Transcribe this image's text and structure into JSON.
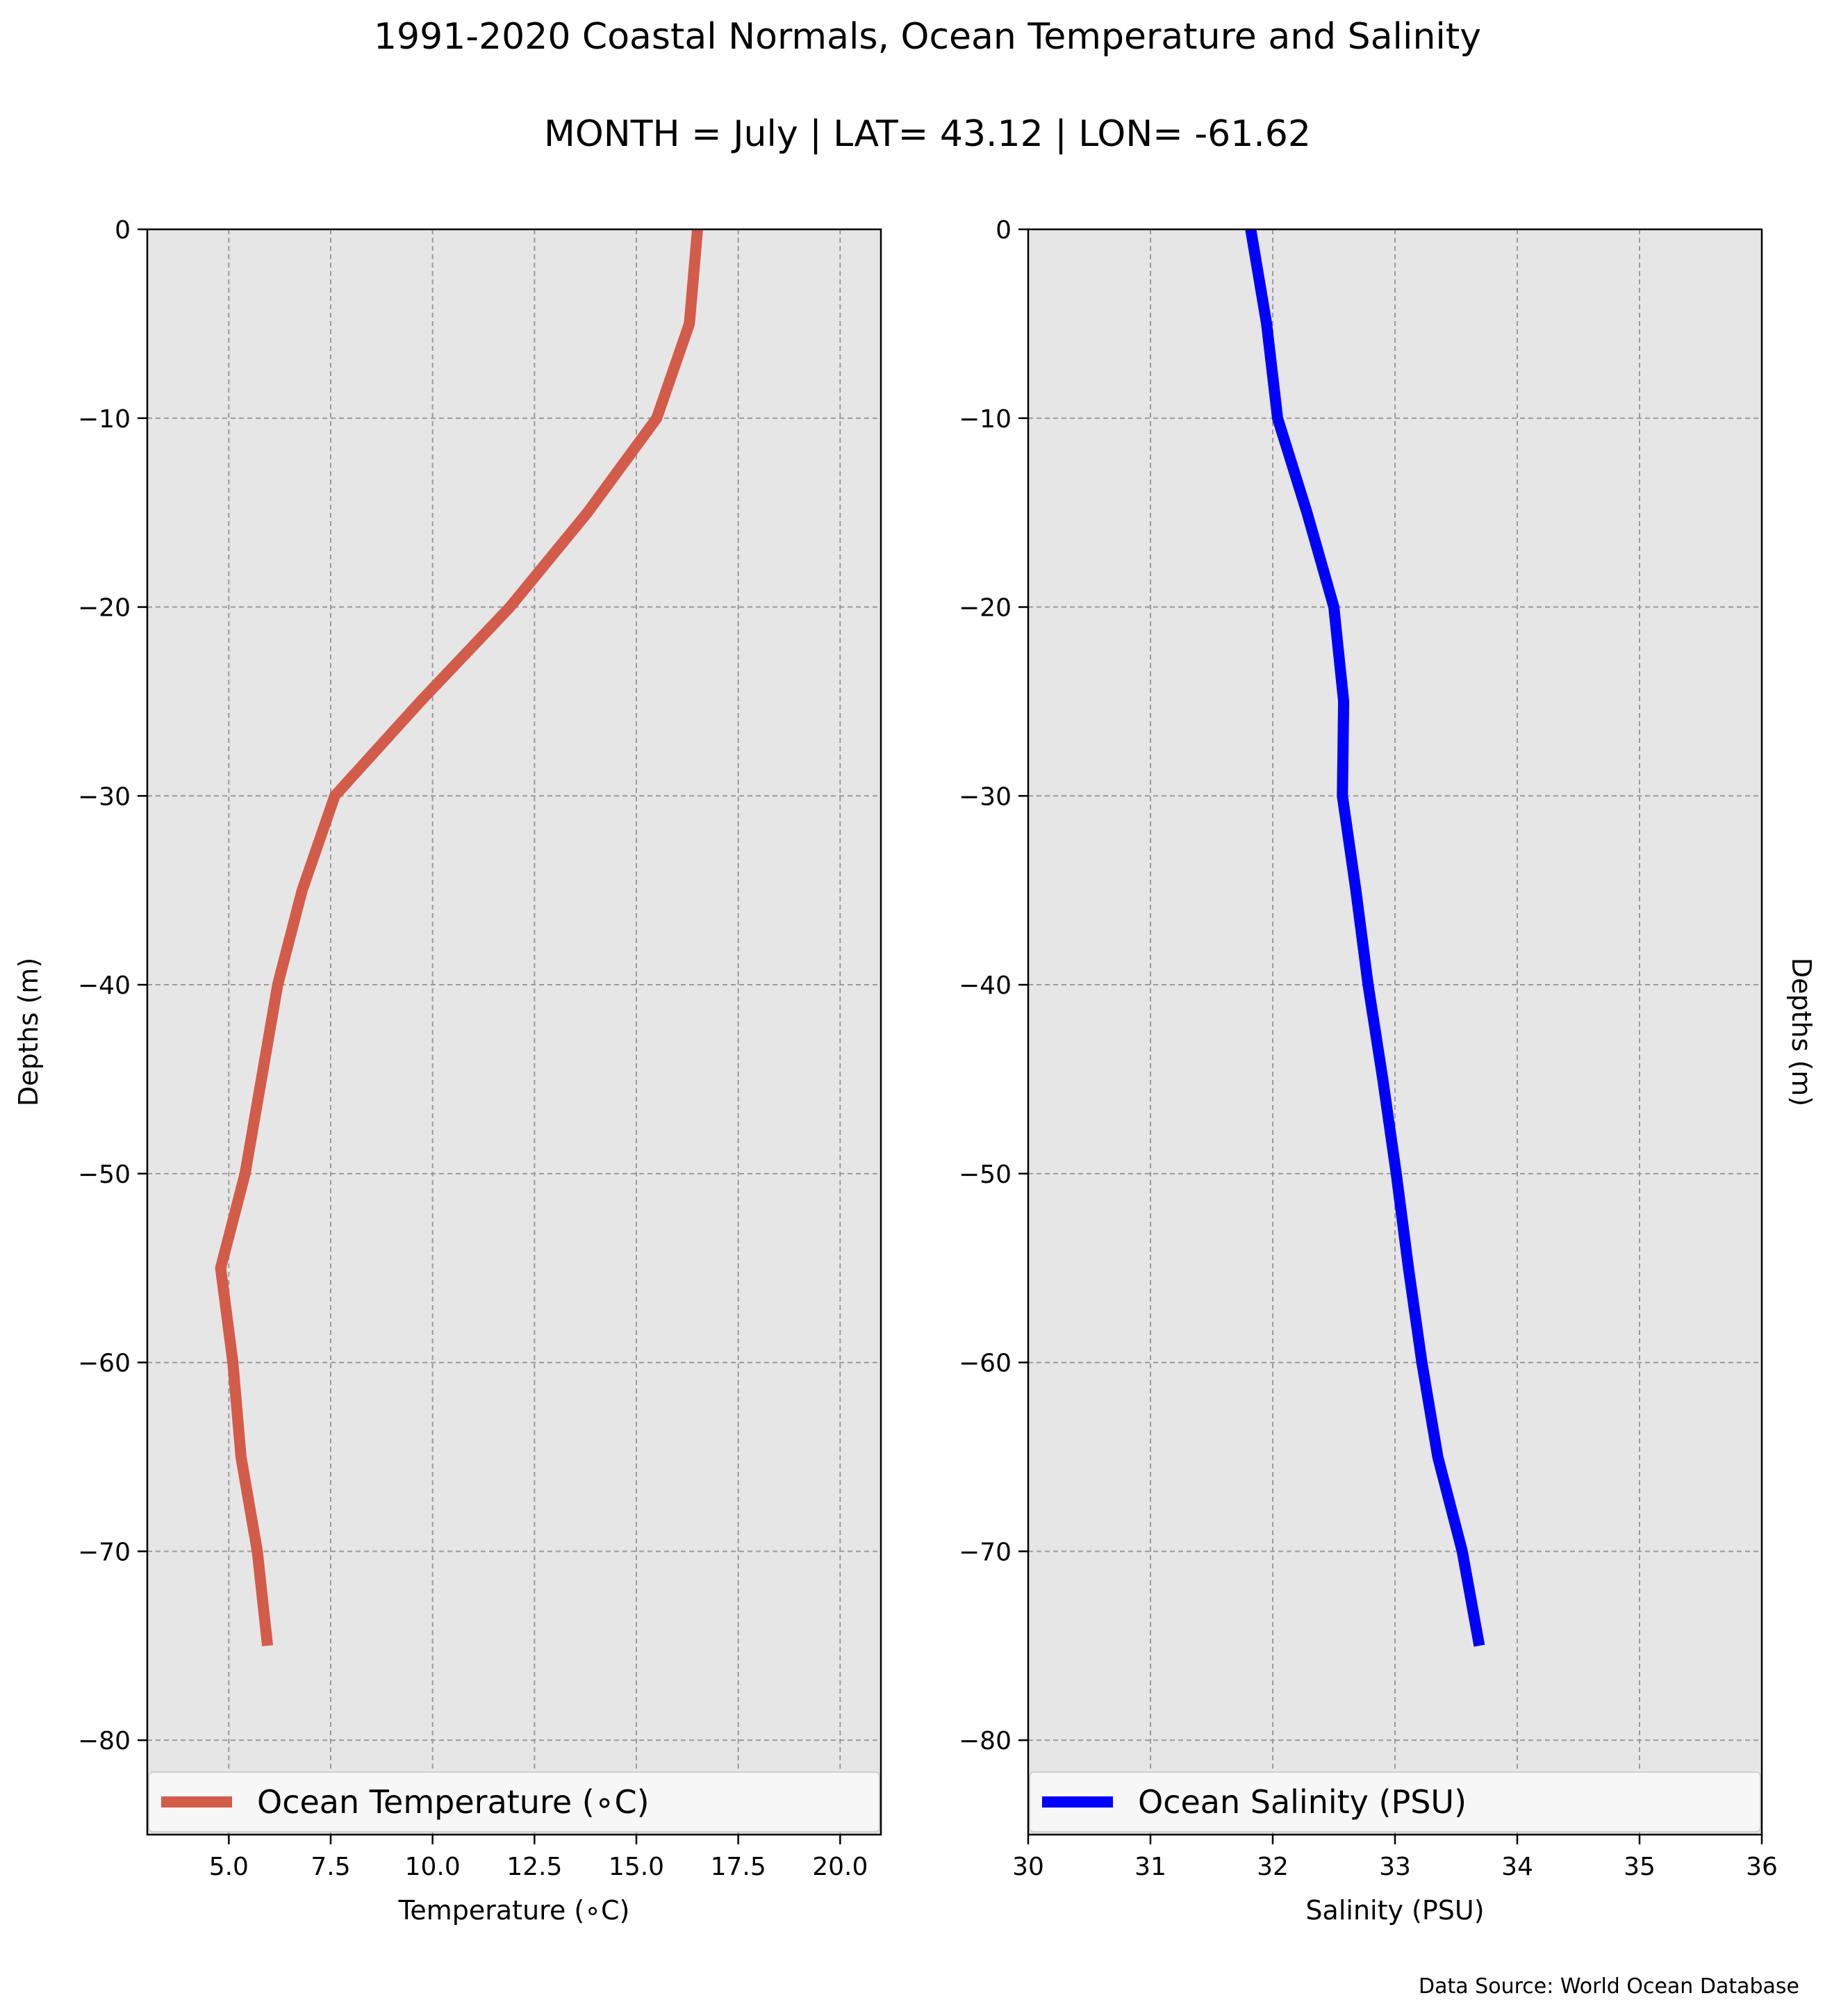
{
  "figure": {
    "title_line1": "1991-2020 Coastal Normals, Ocean Temperature and Salinity",
    "title_line2": "MONTH = July | LAT= 43.12 | LON= -61.62",
    "source_note": "Data Source: World Ocean Database"
  },
  "chart_data": [
    {
      "type": "line",
      "ylabel": "Depths (m)",
      "xlabel": "Temperature (∘C)",
      "xlim": [
        3.0,
        21.0
      ],
      "ylim": [
        -85,
        0
      ],
      "xticks": [
        5.0,
        7.5,
        10.0,
        12.5,
        15.0,
        17.5,
        20.0
      ],
      "xtick_labels": [
        "5.0",
        "7.5",
        "10.0",
        "12.5",
        "15.0",
        "17.5",
        "20.0"
      ],
      "yticks": [
        0,
        -10,
        -20,
        -30,
        -40,
        -50,
        -60,
        -70,
        -80
      ],
      "ytick_labels": [
        "0",
        "−10",
        "−20",
        "−30",
        "−40",
        "−50",
        "−60",
        "−70",
        "−80"
      ],
      "grid": true,
      "legend_position": "bottom",
      "series": [
        {
          "name": "Ocean Temperature (∘C)",
          "color": "#d35b4a",
          "x": [
            16.5,
            16.3,
            15.5,
            13.8,
            11.9,
            9.7,
            7.6,
            6.8,
            6.2,
            5.8,
            5.4,
            4.8,
            5.1,
            5.3,
            5.7,
            5.95
          ],
          "y": [
            0,
            -5,
            -10,
            -15,
            -20,
            -25,
            -30,
            -35,
            -40,
            -45,
            -50,
            -55,
            -60,
            -65,
            -70,
            -75
          ]
        }
      ]
    },
    {
      "type": "line",
      "ylabel": "Depths (m)",
      "xlabel": "Salinity (PSU)",
      "xlim": [
        30,
        36
      ],
      "ylim": [
        -85,
        0
      ],
      "xticks": [
        30,
        31,
        32,
        33,
        34,
        35,
        36
      ],
      "xtick_labels": [
        "30",
        "31",
        "32",
        "33",
        "34",
        "35",
        "36"
      ],
      "yticks": [
        0,
        -10,
        -20,
        -30,
        -40,
        -50,
        -60,
        -70,
        -80
      ],
      "ytick_labels": [
        "0",
        "−10",
        "−20",
        "−30",
        "−40",
        "−50",
        "−60",
        "−70",
        "−80"
      ],
      "grid": true,
      "legend_position": "bottom",
      "series": [
        {
          "name": "Ocean Salinity (PSU)",
          "color": "#0000ff",
          "x": [
            31.82,
            31.95,
            32.04,
            32.28,
            32.5,
            32.58,
            32.57,
            32.68,
            32.78,
            32.9,
            33.01,
            33.11,
            33.22,
            33.35,
            33.55,
            33.69
          ],
          "y": [
            0,
            -5,
            -10,
            -15,
            -20,
            -25,
            -30,
            -35,
            -40,
            -45,
            -50,
            -55,
            -60,
            -65,
            -70,
            -75
          ]
        }
      ]
    }
  ]
}
